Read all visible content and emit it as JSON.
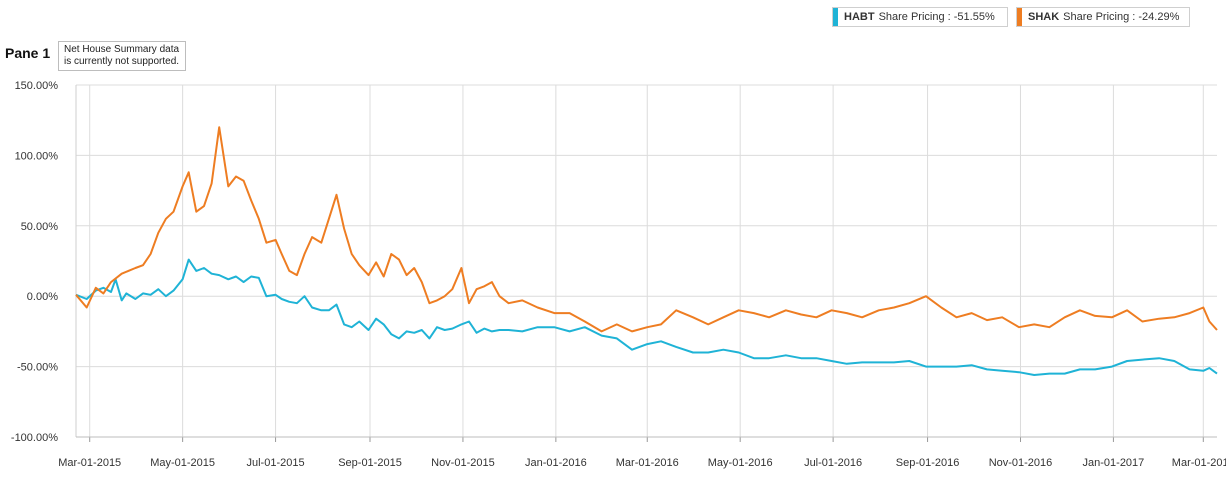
{
  "legend": {
    "items": [
      {
        "symbol": "HABT",
        "label": "Share Pricing : -51.55%",
        "color": "#1fb3d6"
      },
      {
        "symbol": "SHAK",
        "label": "Share Pricing : -24.29%",
        "color": "#ee7d22"
      }
    ]
  },
  "pane": {
    "title": "Pane 1",
    "note": "Net House Summary data is currently not supported."
  },
  "chart_data": {
    "type": "line",
    "title": "",
    "xlabel": "",
    "ylabel": "",
    "ylim": [
      -100,
      150
    ],
    "yticks": [
      150,
      100,
      50,
      0,
      -50,
      -100
    ],
    "ytick_labels": [
      "150.00%",
      "100.00%",
      "50.00%",
      "0.00%",
      "-50.00%",
      "-100.00%"
    ],
    "x_range": [
      "2015-02-20",
      "2017-03-10"
    ],
    "xticks": [
      "Mar-01-2015",
      "May-01-2015",
      "Jul-01-2015",
      "Sep-01-2015",
      "Nov-01-2015",
      "Jan-01-2016",
      "Mar-01-2016",
      "May-01-2016",
      "Jul-01-2016",
      "Sep-01-2016",
      "Nov-01-2016",
      "Jan-01-2017",
      "Mar-01-2017"
    ],
    "grid": true,
    "series": [
      {
        "name": "HABT",
        "color": "#1fb3d6",
        "dates": [
          "2015-02-20",
          "2015-02-27",
          "2015-03-05",
          "2015-03-10",
          "2015-03-15",
          "2015-03-18",
          "2015-03-22",
          "2015-03-25",
          "2015-03-31",
          "2015-04-05",
          "2015-04-10",
          "2015-04-15",
          "2015-04-20",
          "2015-04-25",
          "2015-05-01",
          "2015-05-05",
          "2015-05-10",
          "2015-05-15",
          "2015-05-20",
          "2015-05-25",
          "2015-05-31",
          "2015-06-05",
          "2015-06-10",
          "2015-06-15",
          "2015-06-20",
          "2015-06-25",
          "2015-07-01",
          "2015-07-05",
          "2015-07-10",
          "2015-07-15",
          "2015-07-20",
          "2015-07-25",
          "2015-07-31",
          "2015-08-05",
          "2015-08-10",
          "2015-08-15",
          "2015-08-20",
          "2015-08-25",
          "2015-08-31",
          "2015-09-05",
          "2015-09-10",
          "2015-09-15",
          "2015-09-20",
          "2015-09-25",
          "2015-09-30",
          "2015-10-05",
          "2015-10-10",
          "2015-10-15",
          "2015-10-20",
          "2015-10-25",
          "2015-10-31",
          "2015-11-05",
          "2015-11-10",
          "2015-11-15",
          "2015-11-20",
          "2015-11-25",
          "2015-12-01",
          "2015-12-10",
          "2015-12-20",
          "2015-12-31",
          "2016-01-10",
          "2016-01-20",
          "2016-01-31",
          "2016-02-10",
          "2016-02-20",
          "2016-03-01",
          "2016-03-10",
          "2016-03-20",
          "2016-03-31",
          "2016-04-10",
          "2016-04-20",
          "2016-04-30",
          "2016-05-10",
          "2016-05-20",
          "2016-05-31",
          "2016-06-10",
          "2016-06-20",
          "2016-06-30",
          "2016-07-10",
          "2016-07-20",
          "2016-07-31",
          "2016-08-10",
          "2016-08-20",
          "2016-08-31",
          "2016-09-10",
          "2016-09-20",
          "2016-09-30",
          "2016-10-10",
          "2016-10-20",
          "2016-10-31",
          "2016-11-10",
          "2016-11-20",
          "2016-11-30",
          "2016-12-10",
          "2016-12-20",
          "2016-12-31",
          "2017-01-10",
          "2017-01-20",
          "2017-01-31",
          "2017-02-10",
          "2017-02-20",
          "2017-03-01",
          "2017-03-05",
          "2017-03-10"
        ],
        "values": [
          1,
          -2,
          4,
          6,
          3,
          12,
          -3,
          2,
          -2,
          2,
          1,
          5,
          0,
          4,
          12,
          26,
          18,
          20,
          16,
          15,
          12,
          14,
          10,
          14,
          13,
          0,
          1,
          -2,
          -4,
          -5,
          0,
          -8,
          -10,
          -10,
          -6,
          -20,
          -22,
          -18,
          -24,
          -16,
          -20,
          -27,
          -30,
          -25,
          -26,
          -24,
          -30,
          -22,
          -24,
          -23,
          -20,
          -18,
          -26,
          -23,
          -25,
          -24,
          -24,
          -25,
          -22,
          -22,
          -25,
          -22,
          -28,
          -30,
          -38,
          -34,
          -32,
          -36,
          -40,
          -40,
          -38,
          -40,
          -44,
          -44,
          -42,
          -44,
          -44,
          -46,
          -48,
          -47,
          -47,
          -47,
          -46,
          -50,
          -50,
          -50,
          -49,
          -52,
          -53,
          -54,
          -56,
          -55,
          -55,
          -52,
          -52,
          -50,
          -46,
          -45,
          -44,
          -46,
          -52,
          -53,
          -51,
          -55
        ]
      },
      {
        "name": "SHAK",
        "color": "#ee7d22",
        "dates": [
          "2015-02-20",
          "2015-02-27",
          "2015-03-05",
          "2015-03-10",
          "2015-03-15",
          "2015-03-22",
          "2015-03-31",
          "2015-04-05",
          "2015-04-10",
          "2015-04-15",
          "2015-04-20",
          "2015-04-25",
          "2015-05-01",
          "2015-05-05",
          "2015-05-10",
          "2015-05-15",
          "2015-05-20",
          "2015-05-25",
          "2015-05-31",
          "2015-06-05",
          "2015-06-10",
          "2015-06-15",
          "2015-06-20",
          "2015-06-25",
          "2015-07-01",
          "2015-07-05",
          "2015-07-10",
          "2015-07-15",
          "2015-07-20",
          "2015-07-25",
          "2015-07-31",
          "2015-08-05",
          "2015-08-10",
          "2015-08-15",
          "2015-08-20",
          "2015-08-25",
          "2015-08-31",
          "2015-09-05",
          "2015-09-10",
          "2015-09-15",
          "2015-09-20",
          "2015-09-25",
          "2015-09-30",
          "2015-10-05",
          "2015-10-10",
          "2015-10-15",
          "2015-10-20",
          "2015-10-25",
          "2015-10-31",
          "2015-11-05",
          "2015-11-10",
          "2015-11-15",
          "2015-11-20",
          "2015-11-25",
          "2015-12-01",
          "2015-12-10",
          "2015-12-20",
          "2015-12-31",
          "2016-01-10",
          "2016-01-20",
          "2016-01-31",
          "2016-02-10",
          "2016-02-20",
          "2016-03-01",
          "2016-03-10",
          "2016-03-20",
          "2016-03-31",
          "2016-04-10",
          "2016-04-20",
          "2016-04-30",
          "2016-05-10",
          "2016-05-20",
          "2016-05-31",
          "2016-06-10",
          "2016-06-20",
          "2016-06-30",
          "2016-07-10",
          "2016-07-20",
          "2016-07-31",
          "2016-08-10",
          "2016-08-20",
          "2016-08-31",
          "2016-09-10",
          "2016-09-20",
          "2016-09-30",
          "2016-10-10",
          "2016-10-20",
          "2016-10-31",
          "2016-11-10",
          "2016-11-20",
          "2016-11-30",
          "2016-12-10",
          "2016-12-20",
          "2016-12-31",
          "2017-01-10",
          "2017-01-20",
          "2017-01-31",
          "2017-02-10",
          "2017-02-20",
          "2017-03-01",
          "2017-03-05",
          "2017-03-10"
        ],
        "values": [
          1,
          -8,
          6,
          2,
          10,
          16,
          20,
          22,
          30,
          45,
          55,
          60,
          78,
          88,
          60,
          64,
          80,
          120,
          78,
          85,
          82,
          68,
          55,
          38,
          40,
          30,
          18,
          15,
          30,
          42,
          38,
          55,
          72,
          48,
          30,
          22,
          15,
          24,
          14,
          30,
          26,
          15,
          20,
          10,
          -5,
          -3,
          0,
          5,
          20,
          -5,
          5,
          7,
          10,
          0,
          -5,
          -3,
          -8,
          -12,
          -12,
          -18,
          -25,
          -20,
          -25,
          -22,
          -20,
          -10,
          -15,
          -20,
          -15,
          -10,
          -12,
          -15,
          -10,
          -13,
          -15,
          -10,
          -12,
          -15,
          -10,
          -8,
          -5,
          0,
          -8,
          -15,
          -12,
          -17,
          -15,
          -22,
          -20,
          -22,
          -15,
          -10,
          -14,
          -15,
          -10,
          -18,
          -16,
          -15,
          -12,
          -8,
          -18,
          -24
        ]
      }
    ]
  }
}
